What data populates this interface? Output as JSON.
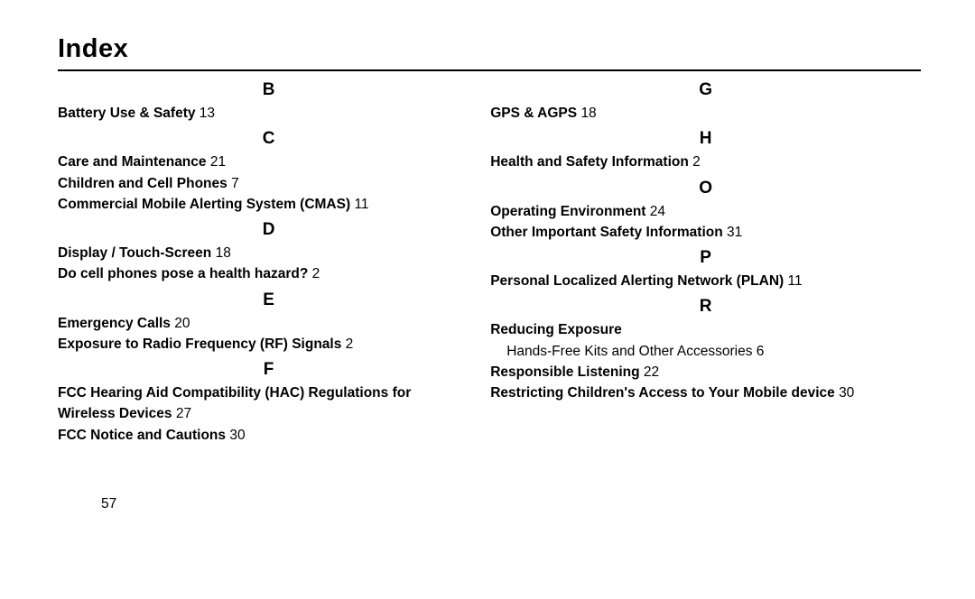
{
  "title": "Index",
  "page_number": "57",
  "left_column": {
    "sections": [
      {
        "letter": "B",
        "entries": [
          {
            "text": "Battery Use & Safety",
            "page": "13"
          }
        ]
      },
      {
        "letter": "C",
        "entries": [
          {
            "text": "Care and Maintenance",
            "page": "21"
          },
          {
            "text": "Children and Cell Phones",
            "page": "7"
          },
          {
            "text": "Commercial Mobile Alerting System (CMAS)",
            "page": "11"
          }
        ]
      },
      {
        "letter": "D",
        "entries": [
          {
            "text": "Display / Touch-Screen",
            "page": "18"
          },
          {
            "text": "Do cell phones pose a health hazard?",
            "page": "2"
          }
        ]
      },
      {
        "letter": "E",
        "entries": [
          {
            "text": "Emergency Calls",
            "page": "20"
          },
          {
            "text": "Exposure to Radio Frequency (RF) Signals",
            "page": "2"
          }
        ]
      },
      {
        "letter": "F",
        "entries": [
          {
            "text_line1": "FCC Hearing Aid Compatibility (HAC) Regulations for",
            "text_line2": "Wireless Devices",
            "page": "27"
          },
          {
            "text": "FCC Notice and Cautions",
            "page": "30"
          }
        ]
      }
    ]
  },
  "right_column": {
    "sections": [
      {
        "letter": "G",
        "entries": [
          {
            "text": "GPS & AGPS",
            "page": "18"
          }
        ]
      },
      {
        "letter": "H",
        "entries": [
          {
            "text": "Health and Safety Information",
            "page": "2"
          }
        ]
      },
      {
        "letter": "O",
        "entries": [
          {
            "text": "Operating Environment",
            "page": "24"
          },
          {
            "text": "Other Important Safety Information",
            "page": "31"
          }
        ]
      },
      {
        "letter": "P",
        "entries": [
          {
            "text": "Personal Localized Alerting Network (PLAN)",
            "page": "11"
          }
        ]
      },
      {
        "letter": "R",
        "entries": [
          {
            "text": "Reducing Exposure",
            "sub": {
              "text": "Hands-Free Kits and Other Accessories",
              "page": "6"
            }
          },
          {
            "text": "Responsible Listening",
            "page": "22"
          },
          {
            "text": "Restricting Children's Access to Your Mobile device",
            "page": "30"
          }
        ]
      }
    ]
  }
}
